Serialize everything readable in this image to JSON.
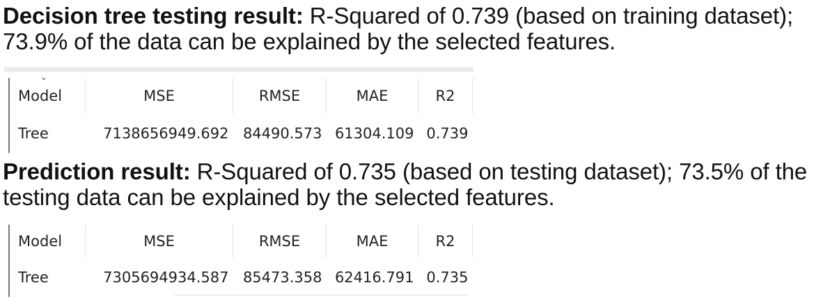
{
  "section1": {
    "bold": "Decision tree testing result:",
    "text": " R-Squared of 0.739 (based on training dataset); 73.9% of the data can be explained by the selected features.",
    "table": {
      "headers": [
        "Model",
        "MSE",
        "RMSE",
        "MAE",
        "R2"
      ],
      "rows": [
        [
          "Tree",
          "7138656949.692",
          "84490.573",
          "61304.109",
          "0.739"
        ]
      ]
    }
  },
  "section2": {
    "bold": "Prediction result:",
    "text": " R-Squared of 0.735 (based on testing dataset); 73.5% of the testing data can be explained by the selected features.",
    "table": {
      "headers": [
        "Model",
        "MSE",
        "RMSE",
        "MAE",
        "R2"
      ],
      "rows": [
        [
          "Tree",
          "7305694934.587",
          "85473.358",
          "62416.791",
          "0.735"
        ]
      ]
    }
  },
  "icons": {
    "sort": "chevron-down-icon"
  }
}
